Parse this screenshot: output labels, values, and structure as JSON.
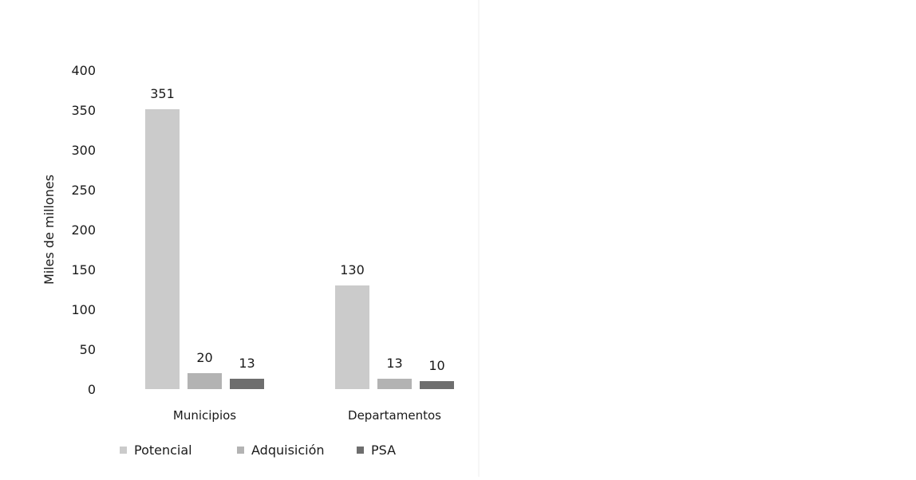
{
  "chart_data": {
    "type": "bar",
    "title": "",
    "xlabel": "",
    "ylabel": "Miles de millones",
    "ylim": [
      0,
      400
    ],
    "yticks": [
      0,
      50,
      100,
      150,
      200,
      250,
      300,
      350,
      400
    ],
    "grid": false,
    "legend_placement": "bottom",
    "categories": [
      "Municipios",
      "Departamentos"
    ],
    "series": [
      {
        "name": "Potencial",
        "values": [
          351,
          130
        ],
        "color": "#cbcbcb"
      },
      {
        "name": "Adquisición",
        "values": [
          20,
          13
        ],
        "color": "#b3b3b3"
      },
      {
        "name": "PSA",
        "values": [
          13,
          10
        ],
        "color": "#6e6e6e"
      }
    ]
  }
}
